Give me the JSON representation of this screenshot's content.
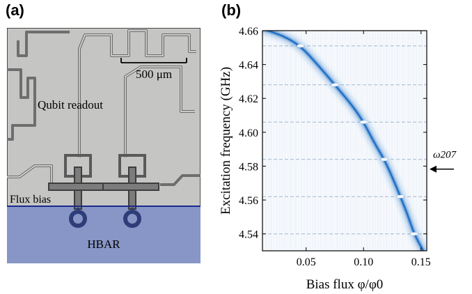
{
  "figure": {
    "panel_a_label": "(a)",
    "panel_b_label": "(b)"
  },
  "micrograph": {
    "scale_bar_label": "500 μm",
    "qubit_readout_label": "Qubit readout",
    "flux_bias_label": "Flux bias",
    "hbar_label": "HBAR",
    "colors": {
      "chip_background": "#c5c5c3",
      "hbar_region": "#8796c6",
      "interface_line": "#1a2a8c",
      "trace": "#6e6e6e"
    }
  },
  "chart_data": {
    "type": "heatmap",
    "xlabel": "Bias flux φ/φ0",
    "ylabel": "Excitation frequency (GHz)",
    "xlim": [
      0.012,
      0.155
    ],
    "ylim": [
      4.53,
      4.66
    ],
    "x_ticks": [
      "0.05",
      "0.10",
      "0.15"
    ],
    "y_ticks": [
      "4.54",
      "4.56",
      "4.58",
      "4.60",
      "4.62",
      "4.64",
      "4.66"
    ],
    "mode_frequencies_ghz": [
      4.651,
      4.628,
      4.606,
      4.584,
      4.562,
      4.54
    ],
    "annotation": {
      "text": "ω207",
      "mode_frequency_ghz": 4.584
    },
    "qubit_line": [
      [
        0.012,
        4.661
      ],
      [
        0.03,
        4.657
      ],
      [
        0.045,
        4.651
      ],
      [
        0.06,
        4.64
      ],
      [
        0.075,
        4.628
      ],
      [
        0.09,
        4.616
      ],
      [
        0.1,
        4.606
      ],
      [
        0.11,
        4.593
      ],
      [
        0.118,
        4.584
      ],
      [
        0.126,
        4.572
      ],
      [
        0.132,
        4.562
      ],
      [
        0.138,
        4.552
      ],
      [
        0.144,
        4.54
      ],
      [
        0.152,
        4.53
      ]
    ],
    "colors": {
      "signal": "#1f6fc4",
      "background": "#f6f9fd",
      "mode_line": "#8fa6c3"
    }
  }
}
